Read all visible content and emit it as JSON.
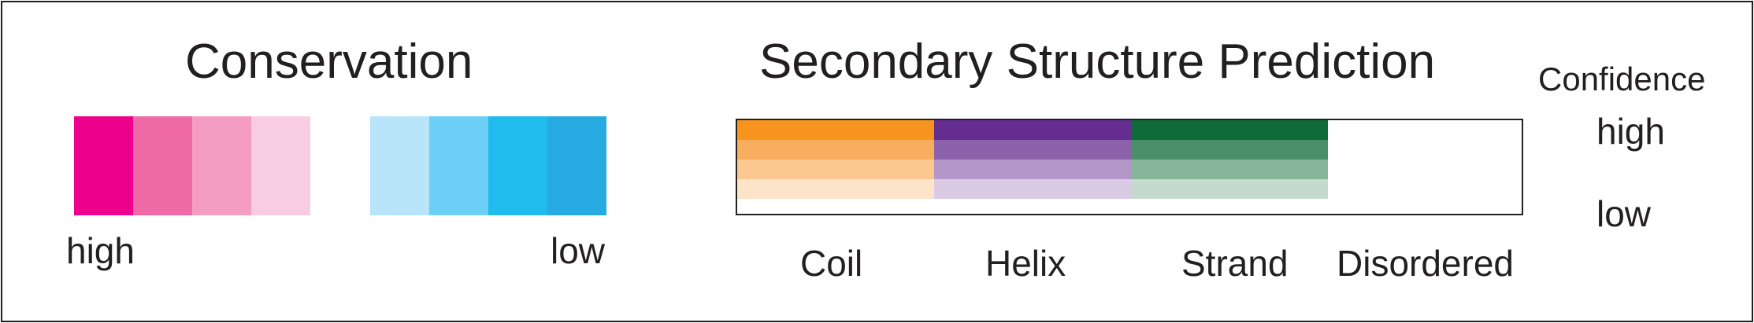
{
  "conservation": {
    "title": "Conservation",
    "high_label": "high",
    "low_label": "low",
    "high_colors": [
      "#ec008c",
      "#f06ba6",
      "#f59cc3",
      "#f9cde1"
    ],
    "low_colors": [
      "#b9e5fb",
      "#6dcff6",
      "#20bced",
      "#27aae1"
    ]
  },
  "secondary_structure": {
    "title": "Secondary Structure Prediction",
    "categories": [
      {
        "label": "Coil",
        "colors": [
          "#f7941d",
          "#f9ad5f",
          "#fcc892",
          "#fde3c8"
        ]
      },
      {
        "label": "Helix",
        "colors": [
          "#662d91",
          "#8c63ab",
          "#b397c8",
          "#d9cbe3"
        ]
      },
      {
        "label": "Strand",
        "colors": [
          "#0f6b3a",
          "#4a8f6a",
          "#87b59a",
          "#c3dacd"
        ]
      },
      {
        "label": "Disordered",
        "colors": []
      }
    ]
  },
  "confidence": {
    "title": "Confidence",
    "high_label": "high",
    "low_label": "low"
  }
}
